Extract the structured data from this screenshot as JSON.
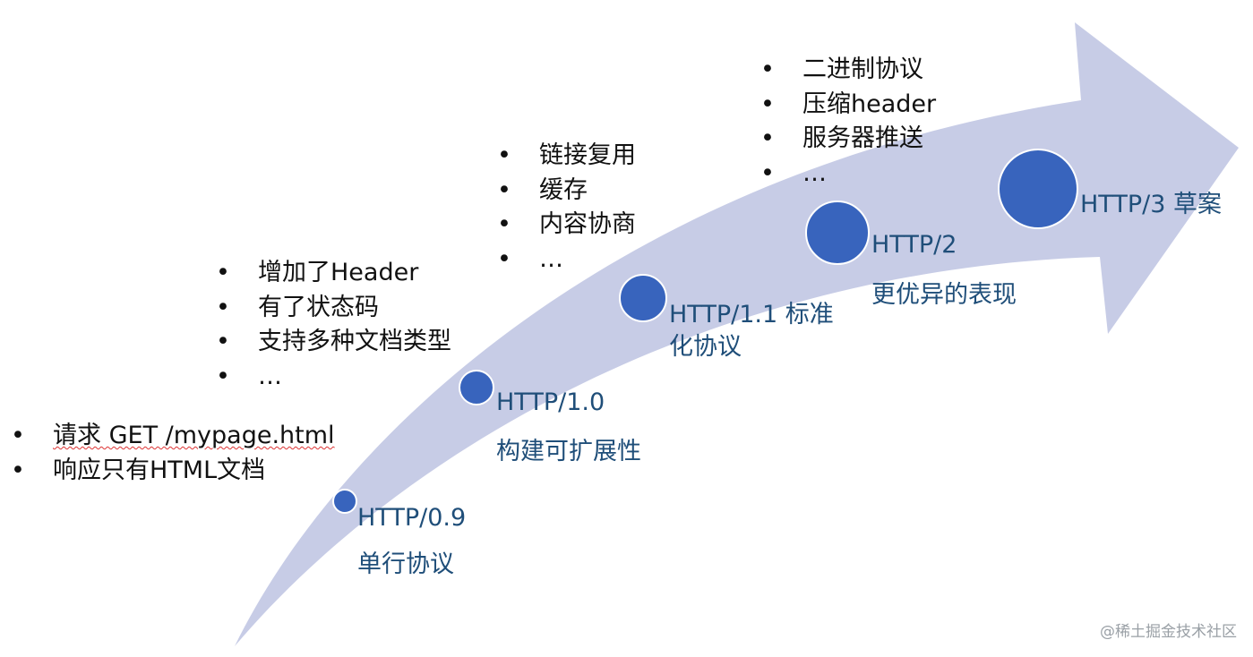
{
  "colors": {
    "arrow": "#c7cce6",
    "dot": "#3864bd",
    "label": "#1f4e79"
  },
  "stages": [
    {
      "version": "HTTP/0.9",
      "desc": "单行协议",
      "features": [
        "请求 GET /mypage.html",
        "响应只有HTML文档"
      ]
    },
    {
      "version": "HTTP/1.0",
      "desc": "构建可扩展性",
      "features": [
        "增加了Header",
        "有了状态码",
        "支持多种文档类型",
        "…"
      ]
    },
    {
      "version": "HTTP/1.1 标准化协议",
      "desc": "",
      "features": [
        "链接复用",
        "缓存",
        "内容协商",
        "…"
      ]
    },
    {
      "version": "HTTP/2",
      "desc": "更优异的表现",
      "features": [
        "二进制协议",
        "压缩header",
        "服务器推送",
        "…"
      ]
    },
    {
      "version": "HTTP/3 草案",
      "desc": "",
      "features": []
    }
  ],
  "watermark": "@稀土掘金技术社区"
}
